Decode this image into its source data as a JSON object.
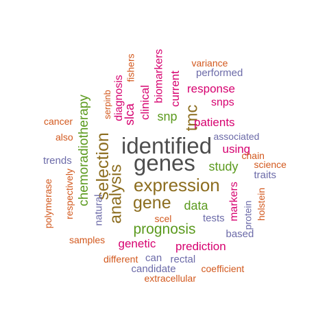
{
  "colors": {
    "gray": "#4d4d4d",
    "brown": "#8c6d1f",
    "green": "#5b9a1e",
    "magenta": "#d6006f",
    "orange": "#d2581d",
    "purple": "#6b6aa8"
  },
  "words": [
    {
      "text": "identified",
      "color": "gray"
    },
    {
      "text": "genes",
      "color": "gray"
    },
    {
      "text": "expression",
      "color": "brown"
    },
    {
      "text": "gene",
      "color": "brown"
    },
    {
      "text": "selection",
      "color": "brown"
    },
    {
      "text": "analysis",
      "color": "brown"
    },
    {
      "text": "tmc",
      "color": "brown"
    },
    {
      "text": "prognosis",
      "color": "green"
    },
    {
      "text": "chemoradiotherapy",
      "color": "green"
    },
    {
      "text": "snp",
      "color": "green"
    },
    {
      "text": "study",
      "color": "green"
    },
    {
      "text": "data",
      "color": "green"
    },
    {
      "text": "patients",
      "color": "magenta"
    },
    {
      "text": "using",
      "color": "magenta"
    },
    {
      "text": "slca",
      "color": "magenta"
    },
    {
      "text": "clinical",
      "color": "magenta"
    },
    {
      "text": "current",
      "color": "magenta"
    },
    {
      "text": "biomarkers",
      "color": "magenta"
    },
    {
      "text": "diagnosis",
      "color": "magenta"
    },
    {
      "text": "response",
      "color": "magenta"
    },
    {
      "text": "snps",
      "color": "magenta"
    },
    {
      "text": "genetic",
      "color": "magenta"
    },
    {
      "text": "prediction",
      "color": "magenta"
    },
    {
      "text": "markers",
      "color": "magenta"
    },
    {
      "text": "fishers",
      "color": "orange"
    },
    {
      "text": "serpinb",
      "color": "orange"
    },
    {
      "text": "variance",
      "color": "orange"
    },
    {
      "text": "cancer",
      "color": "orange"
    },
    {
      "text": "also",
      "color": "orange"
    },
    {
      "text": "respectively",
      "color": "orange"
    },
    {
      "text": "polymerase",
      "color": "orange"
    },
    {
      "text": "samples",
      "color": "orange"
    },
    {
      "text": "scel",
      "color": "orange"
    },
    {
      "text": "chain",
      "color": "orange"
    },
    {
      "text": "science",
      "color": "orange"
    },
    {
      "text": "holstein",
      "color": "orange"
    },
    {
      "text": "different",
      "color": "orange"
    },
    {
      "text": "coefficient",
      "color": "orange"
    },
    {
      "text": "extracellular",
      "color": "orange"
    },
    {
      "text": "performed",
      "color": "purple"
    },
    {
      "text": "associated",
      "color": "purple"
    },
    {
      "text": "trends",
      "color": "purple"
    },
    {
      "text": "traits",
      "color": "purple"
    },
    {
      "text": "natural",
      "color": "purple"
    },
    {
      "text": "tests",
      "color": "purple"
    },
    {
      "text": "protein",
      "color": "purple"
    },
    {
      "text": "based",
      "color": "purple"
    },
    {
      "text": "can",
      "color": "purple"
    },
    {
      "text": "rectal",
      "color": "purple"
    },
    {
      "text": "candidate",
      "color": "purple"
    }
  ]
}
